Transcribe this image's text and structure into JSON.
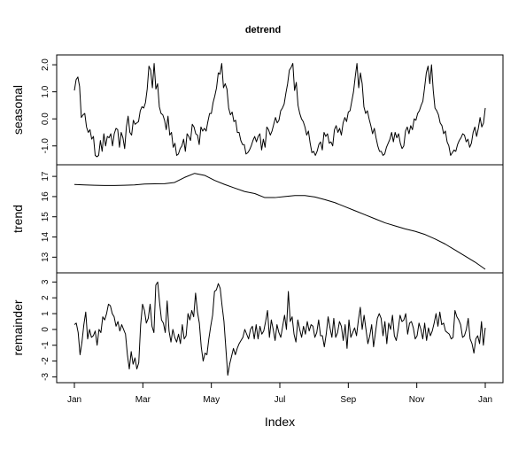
{
  "chart_data": {
    "type": "line",
    "title": "detrend",
    "xlabel": "Index",
    "x_ticks": [
      "Jan",
      "Mar",
      "May",
      "Jul",
      "Sep",
      "Nov",
      "Jan"
    ],
    "x_range_days": [
      0,
      365
    ],
    "grid": false,
    "panels": [
      {
        "ylabel": "seasonal",
        "ylim": [
          -1.5,
          2.2
        ],
        "y_ticks": [
          "2.0",
          "1.0",
          "0.0",
          "-1.0"
        ],
        "y_tick_values": [
          2.0,
          1.0,
          0.0,
          -1.0
        ],
        "values": [
          1.05,
          1.45,
          1.55,
          1.2,
          0.05,
          0.15,
          0.2,
          -0.3,
          -0.5,
          -0.4,
          -0.75,
          -0.65,
          -1.35,
          -1.4,
          -1.35,
          -0.8,
          -1.2,
          -0.55,
          -1.0,
          -0.65,
          -0.7,
          -0.55,
          -1.0,
          -0.55,
          -0.35,
          -0.4,
          -1.05,
          -0.5,
          -0.7,
          -1.1,
          -0.3,
          0.1,
          -0.5,
          -0.6,
          -0.05,
          -0.2,
          -0.15,
          -0.1,
          0.3,
          0.45,
          0.4,
          0.6,
          1.1,
          1.95,
          1.8,
          1.15,
          2.05,
          1.1,
          1.3,
          0.45,
          0.2,
          0.15,
          -0.05,
          -0.4,
          0.1,
          -0.6,
          -0.5,
          -1.05,
          -0.9,
          -1.35,
          -1.3,
          -1.1,
          -1.0,
          -0.75,
          -1.2,
          -0.55,
          -0.65,
          -0.8,
          -0.2,
          -0.3,
          -0.55,
          -0.6,
          -0.95,
          -0.3,
          -0.45,
          -0.35,
          -0.45,
          -0.1,
          0.2,
          0.2,
          0.6,
          0.85,
          1.15,
          1.7,
          1.65,
          2.05,
          1.15,
          1.3,
          1.1,
          0.4,
          0.15,
          0.25,
          -0.1,
          -0.05,
          -0.5,
          -0.5,
          -0.8,
          -0.95,
          -0.95,
          -1.3,
          -1.25,
          -1.15,
          -1.0,
          -0.8,
          -0.65,
          -0.85,
          -0.65,
          -0.55,
          -1.15,
          -0.75,
          -1.05,
          -0.3,
          -0.4,
          -0.6,
          -0.45,
          -0.2,
          0.05,
          -0.15,
          -0.05,
          0.3,
          0.4,
          0.55,
          0.95,
          1.3,
          1.8,
          1.9,
          2.05,
          1.05,
          1.35,
          0.5,
          0.2,
          0.0,
          -0.1,
          -0.3,
          -0.6,
          -0.45,
          -0.9,
          -1.25,
          -1.2,
          -1.35,
          -1.2,
          -0.95,
          -0.85,
          -1.15,
          -0.5,
          -0.65,
          -0.55,
          -0.9,
          -0.85,
          -1.0,
          -0.4,
          -0.25,
          -0.5,
          -0.35,
          -0.6,
          -0.15,
          0.05,
          -0.1,
          0.25,
          0.3,
          0.65,
          1.0,
          1.55,
          2.05,
          1.15,
          1.7,
          1.3,
          0.45,
          0.2,
          0.3,
          0.0,
          -0.25,
          -0.55,
          -0.35,
          -0.7,
          -1.0,
          -1.2,
          -1.2,
          -1.35,
          -1.3,
          -1.05,
          -0.9,
          -0.75,
          -0.5,
          -0.85,
          -0.5,
          -0.7,
          -0.55,
          -0.9,
          -1.1,
          -1.0,
          -0.45,
          -0.3,
          -0.55,
          -0.25,
          -0.4,
          0.0,
          -0.05,
          0.2,
          0.3,
          0.5,
          0.65,
          1.15,
          1.7,
          1.95,
          1.3,
          2.0,
          1.05,
          0.4,
          0.3,
          0.15,
          -0.15,
          -0.25,
          -0.55,
          -0.45,
          -0.85,
          -1.0,
          -1.35,
          -1.25,
          -1.15,
          -1.2,
          -0.95,
          -0.8,
          -0.7,
          -0.55,
          -0.6,
          -0.85,
          -0.75,
          -1.05,
          -0.9,
          -0.5,
          -0.3,
          -0.65,
          -0.35,
          0.05,
          -0.3,
          -0.15,
          0.4
        ]
      },
      {
        "ylabel": "trend",
        "ylim": [
          12.4,
          17.4
        ],
        "y_ticks": [
          "17",
          "16",
          "15",
          "14",
          "13"
        ],
        "y_tick_values": [
          17,
          16,
          15,
          14,
          13
        ],
        "values": [
          16.6,
          16.58,
          16.56,
          16.55,
          16.55,
          16.56,
          16.58,
          16.62,
          16.63,
          16.64,
          16.7,
          16.95,
          17.15,
          17.05,
          16.8,
          16.6,
          16.42,
          16.25,
          16.15,
          15.95,
          15.95,
          16.0,
          16.05,
          16.05,
          15.98,
          15.85,
          15.7,
          15.5,
          15.3,
          15.1,
          14.9,
          14.7,
          14.55,
          14.4,
          14.28,
          14.12,
          13.9,
          13.65,
          13.35,
          13.05,
          12.75,
          12.4
        ]
      },
      {
        "ylabel": "remainder",
        "ylim": [
          -3.2,
          3.3
        ],
        "y_ticks": [
          "3",
          "2",
          "1",
          "0",
          "-1",
          "-2",
          "-3"
        ],
        "y_tick_values": [
          3,
          2,
          1,
          0,
          -1,
          -2,
          -3
        ],
        "values": [
          0.3,
          0.4,
          -0.2,
          -1.6,
          -0.8,
          0.3,
          1.1,
          -0.6,
          0.0,
          -0.5,
          -0.4,
          -0.1,
          -1.0,
          0.0,
          -0.2,
          0.8,
          0.6,
          1.0,
          1.6,
          1.5,
          1.0,
          0.8,
          0.2,
          0.5,
          -0.1,
          0.3,
          0.0,
          -0.3,
          -1.6,
          -2.5,
          -1.4,
          -2.2,
          -1.8,
          -2.5,
          -2.1,
          0.3,
          1.6,
          1.2,
          0.4,
          0.7,
          1.6,
          0.2,
          -0.2,
          2.8,
          3.0,
          1.7,
          0.6,
          0.4,
          -0.2,
          1.8,
          -0.1,
          -0.8,
          0.0,
          -0.5,
          -0.8,
          -0.3,
          -0.9,
          0.3,
          -0.6,
          -0.4,
          1.0,
          0.6,
          1.2,
          0.8,
          2.3,
          1.1,
          0.4,
          -1.1,
          -2.0,
          -1.5,
          -1.6,
          -0.6,
          0.2,
          0.9,
          2.4,
          2.5,
          2.9,
          2.6,
          1.5,
          0.5,
          -1.2,
          -2.9,
          -2.2,
          -1.7,
          -1.2,
          -1.6,
          -1.2,
          -0.9,
          -0.7,
          -0.5,
          0.0,
          -0.3,
          -0.6,
          0.0,
          0.2,
          -0.6,
          0.3,
          -0.6,
          0.2,
          -0.3,
          -0.1,
          0.5,
          1.2,
          -0.5,
          0.6,
          0.0,
          -0.7,
          0.3,
          -0.2,
          -0.5,
          0.2,
          0.9,
          0.0,
          2.4,
          0.5,
          0.8,
          -0.3,
          -0.8,
          0.6,
          0.0,
          -0.5,
          0.2,
          -0.3,
          0.5,
          -0.1,
          0.3,
          0.2,
          -0.5,
          -0.2,
          0.6,
          -0.4,
          -0.4,
          -1.1,
          -0.3,
          0.8,
          0.1,
          -0.5,
          0.7,
          -0.5,
          -0.2,
          0.5,
          0.2,
          -0.7,
          0.3,
          -1.2,
          0.6,
          -0.5,
          -0.2,
          0.1,
          -0.4,
          0.6,
          1.4,
          0.0,
          0.9,
          0.0,
          -0.9,
          -0.4,
          0.3,
          -1.1,
          -0.2,
          0.7,
          1.0,
          0.7,
          -0.4,
          0.5,
          -0.9,
          0.4,
          0.0,
          0.9,
          -0.4,
          -0.7,
          0.0,
          0.9,
          0.5,
          0.6,
          1.0,
          -0.3,
          0.4,
          0.5,
          0.1,
          -0.6,
          -0.4,
          0.4,
          0.0,
          -0.6,
          0.4,
          -0.7,
          0.1,
          -0.4,
          -0.1,
          0.4,
          1.0,
          0.2,
          1.1,
          0.3,
          0.4,
          -0.1,
          -0.2,
          -0.3,
          -0.6,
          -0.5,
          1.2,
          0.8,
          0.6,
          0.3,
          -0.5,
          -0.4,
          0.0,
          0.7,
          -0.6,
          -0.9,
          -1.5,
          -0.6,
          -0.4,
          -0.9,
          0.5,
          -1.0,
          0.1
        ]
      }
    ]
  }
}
